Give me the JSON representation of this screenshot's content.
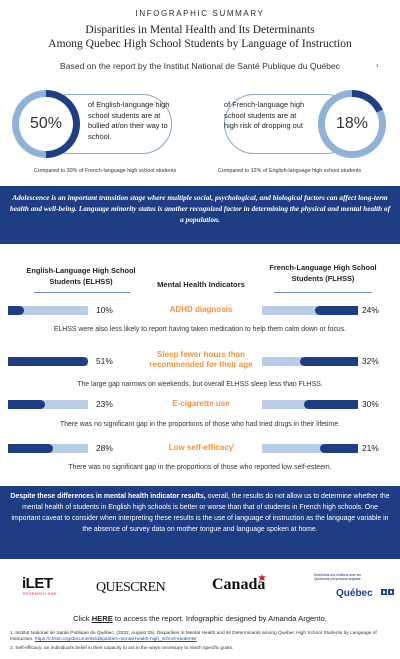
{
  "header": {
    "kicker": "INFOGRAPHIC SUMMARY",
    "title_line1": "Disparities in Mental Health and Its Determinants",
    "title_line2": "Among Quebec High School Students by Language of Instruction",
    "report_line": "Based on the report by the Institut National de Santé Publique du Québec",
    "report_sup": "1"
  },
  "stats": {
    "left": {
      "value": "50%",
      "fraction": 0.5,
      "text": "of English-language high school students are at bullied at/on their way to school.",
      "compare": "Compared to 30% of French-language high school students"
    },
    "right": {
      "value": "18%",
      "fraction": 0.18,
      "text": "of French-language high school students are at high risk of dropping out",
      "compare": "Compared to 12% of English-language high school students"
    }
  },
  "intro_band": "Adolescence is an important transition stage where multiple social, psychological, and biological factors can affect long-term health and well-being. Language minority status is another recognized factor in determining the physical and mental health of a population.",
  "indicators_section": {
    "left_header": "English-Language High School Students (ELHSS)",
    "middle_header": "Mental Health Indicators",
    "right_header": "French-Language High School Students (FLHSS)",
    "indicators": [
      {
        "name": "ADHD diagnosis",
        "sup": "",
        "elhss": "10%",
        "elhss_value": 10,
        "flhss": "24%",
        "flhss_value": 24,
        "note": "ELHSS were also less likely to report having taken medication to help them calm down or focus."
      },
      {
        "name": "Sleep fewer hours than recommended for their age",
        "sup": "",
        "elhss": "51%",
        "elhss_value": 51,
        "flhss": "32%",
        "flhss_value": 32,
        "note": "The large gap narrows on weekends, but overall ELHSS sleep less than FLHSS."
      },
      {
        "name": "E-cigarette use",
        "sup": "",
        "elhss": "23%",
        "elhss_value": 23,
        "flhss": "30%",
        "flhss_value": 30,
        "note": "There was no significant gap in the proportions of those who had tried drugs in their lifetime."
      },
      {
        "name": "Low self-efficacy",
        "sup": "2",
        "elhss": "28%",
        "elhss_value": 28,
        "flhss": "21%",
        "flhss_value": 21,
        "note": "There was no significant gap in the proportions of those who reported low self-esteem."
      }
    ]
  },
  "conclusion": {
    "bold": "Despite these differences in mental health indicator results,",
    "rest": " overall, the results do not allow us to determine whether the mental health of students in English high schools is better or worse than that of students in French high schools. One important caveat to consider when interpreting these results is the use of language of instruction as the language variable in the absence of survey data on mother tongue and language spoken at home."
  },
  "logos": {
    "ilet": "iLET",
    "ilet_sub": "RESEARCH HUB",
    "quescren": "QUESCREN",
    "canada": "Canada",
    "quebec_text": "Secrétariat aux relations avec les Québécois d'expression anglaise",
    "quebec": "Québec"
  },
  "footer": {
    "link_prefix": "Click ",
    "link_text": "HERE",
    "link_suffix": " to access the report. Infographic designed by Amanda Argento.",
    "fn1_text": "1. Institut National de Santé Publique du Québec. (2022, August 25). Disparities in Mental Health and its Determinants among Quebec High School Students by Language of Instruction. ",
    "fn1_link": "https://chssn.org/documents/disparities-mental-health-high_school-students/",
    "fn2": "2. Self-efficacy: an individual's belief in their capacity to act in the ways necessary to reach specific goals.",
    "accent_color": "#f0923e",
    "band_color": "#1e3d83"
  }
}
